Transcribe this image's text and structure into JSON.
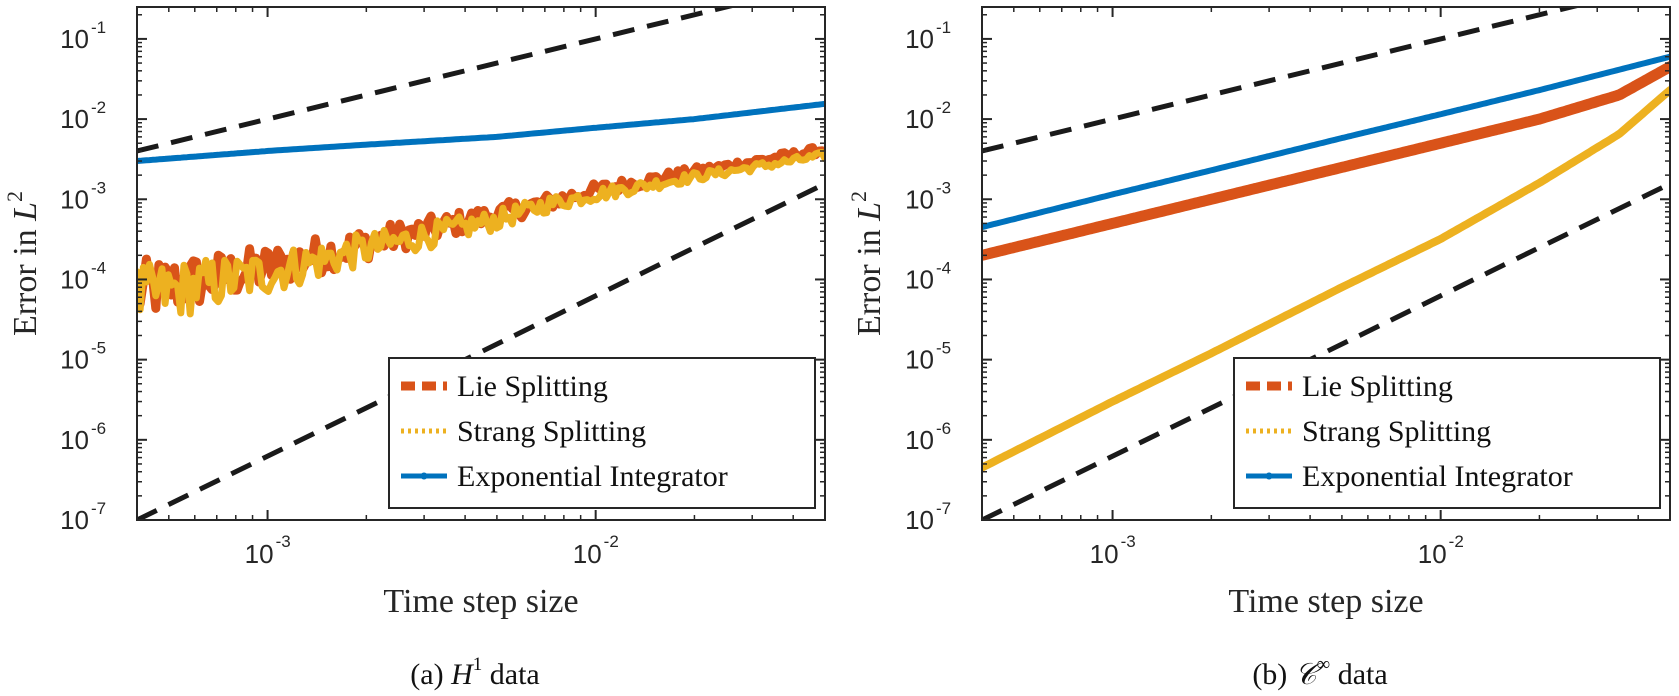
{
  "colors": {
    "lie": "#D95319",
    "strang": "#EDB120",
    "exponential": "#0072BD",
    "reference": "#1a1a1a",
    "axes_bg": "#ffffff",
    "axes_edge": "#262626"
  },
  "chart_data": [
    {
      "type": "line",
      "panel": "a",
      "caption_prefix": "(a) ",
      "caption_math": "H",
      "caption_sup": "1",
      "caption_suffix": " data",
      "xlabel": "Time step size",
      "ylabel_prefix": "Error in ",
      "ylabel_math": "L",
      "ylabel_sup": "2",
      "xscale": "log",
      "yscale": "log",
      "xlim": [
        0.0004,
        0.05
      ],
      "ylim": [
        1e-07,
        0.25
      ],
      "xticks": [
        {
          "base": "10",
          "exp": "-3",
          "value": 0.001
        },
        {
          "base": "10",
          "exp": "-2",
          "value": 0.01
        }
      ],
      "yticks": [
        {
          "base": "10",
          "exp": "-7",
          "value": 1e-07
        },
        {
          "base": "10",
          "exp": "-6",
          "value": 1e-06
        },
        {
          "base": "10",
          "exp": "-5",
          "value": 1e-05
        },
        {
          "base": "10",
          "exp": "-4",
          "value": 0.0001
        },
        {
          "base": "10",
          "exp": "-3",
          "value": 0.001
        },
        {
          "base": "10",
          "exp": "-2",
          "value": 0.01
        },
        {
          "base": "10",
          "exp": "-1",
          "value": 0.1
        }
      ],
      "series": [
        {
          "name": "Lie Splitting",
          "key": "lie",
          "style": "dashed-thick",
          "noisy": true,
          "x": [
            0.0004,
            0.001,
            0.002,
            0.005,
            0.007,
            0.01,
            0.02,
            0.05
          ],
          "y": [
            7e-05,
            0.00014,
            0.00028,
            0.00065,
            0.0009,
            0.0013,
            0.0022,
            0.0042
          ]
        },
        {
          "name": "Strang Splitting",
          "key": "strang",
          "style": "dotted-thick",
          "noisy": true,
          "x": [
            0.0004,
            0.001,
            0.002,
            0.005,
            0.007,
            0.01,
            0.02,
            0.05
          ],
          "y": [
            6e-05,
            0.00012,
            0.00024,
            0.00055,
            0.00085,
            0.00115,
            0.0019,
            0.0035
          ]
        },
        {
          "name": "Exponential Integrator",
          "key": "exponential",
          "style": "solid-dots",
          "noisy": false,
          "x": [
            0.0004,
            0.001,
            0.002,
            0.005,
            0.01,
            0.02,
            0.05
          ],
          "y": [
            0.003,
            0.004,
            0.0048,
            0.006,
            0.0078,
            0.01,
            0.0155
          ]
        }
      ],
      "reference_lines": [
        {
          "order": 1,
          "x": [
            0.0004,
            0.05
          ],
          "y": [
            0.004,
            0.5
          ]
        },
        {
          "order": 2,
          "x": [
            0.0004,
            0.05
          ],
          "y": [
            1e-07,
            0.0015625
          ]
        }
      ],
      "legend": {
        "position": "bottom-right",
        "entries": [
          "Lie Splitting",
          "Strang Splitting",
          "Exponential Integrator"
        ]
      }
    },
    {
      "type": "line",
      "panel": "b",
      "caption_prefix": "(b) ",
      "caption_math": "𝒞",
      "caption_sup": "∞",
      "caption_suffix": " data",
      "xlabel": "Time step size",
      "ylabel_prefix": "Error in ",
      "ylabel_math": "L",
      "ylabel_sup": "2",
      "xscale": "log",
      "yscale": "log",
      "xlim": [
        0.0004,
        0.05
      ],
      "ylim": [
        1e-07,
        0.25
      ],
      "xticks": [
        {
          "base": "10",
          "exp": "-3",
          "value": 0.001
        },
        {
          "base": "10",
          "exp": "-2",
          "value": 0.01
        }
      ],
      "yticks": [
        {
          "base": "10",
          "exp": "-7",
          "value": 1e-07
        },
        {
          "base": "10",
          "exp": "-6",
          "value": 1e-06
        },
        {
          "base": "10",
          "exp": "-5",
          "value": 1e-05
        },
        {
          "base": "10",
          "exp": "-4",
          "value": 0.0001
        },
        {
          "base": "10",
          "exp": "-3",
          "value": 0.001
        },
        {
          "base": "10",
          "exp": "-2",
          "value": 0.01
        },
        {
          "base": "10",
          "exp": "-1",
          "value": 0.1
        }
      ],
      "series": [
        {
          "name": "Lie Splitting",
          "key": "lie",
          "style": "dashed-thick",
          "noisy": false,
          "x": [
            0.0004,
            0.001,
            0.002,
            0.005,
            0.01,
            0.02,
            0.035,
            0.05
          ],
          "y": [
            0.0002,
            0.0005,
            0.001,
            0.0025,
            0.005,
            0.01,
            0.02,
            0.045
          ]
        },
        {
          "name": "Strang Splitting",
          "key": "strang",
          "style": "dotted-thick",
          "noisy": false,
          "x": [
            0.0004,
            0.001,
            0.002,
            0.005,
            0.01,
            0.02,
            0.035,
            0.05
          ],
          "y": [
            4.5e-07,
            3e-06,
            1.2e-05,
            8e-05,
            0.00032,
            0.0016,
            0.0065,
            0.023
          ]
        },
        {
          "name": "Exponential Integrator",
          "key": "exponential",
          "style": "solid-dots",
          "noisy": false,
          "x": [
            0.0004,
            0.001,
            0.002,
            0.005,
            0.01,
            0.02,
            0.05
          ],
          "y": [
            0.00045,
            0.00115,
            0.0023,
            0.0058,
            0.0115,
            0.023,
            0.06
          ]
        }
      ],
      "reference_lines": [
        {
          "order": 1,
          "x": [
            0.0004,
            0.05
          ],
          "y": [
            0.004,
            0.5
          ]
        },
        {
          "order": 2,
          "x": [
            0.0004,
            0.05
          ],
          "y": [
            1e-07,
            0.0015625
          ]
        }
      ],
      "legend": {
        "position": "bottom-right",
        "entries": [
          "Lie Splitting",
          "Strang Splitting",
          "Exponential Integrator"
        ]
      }
    }
  ]
}
